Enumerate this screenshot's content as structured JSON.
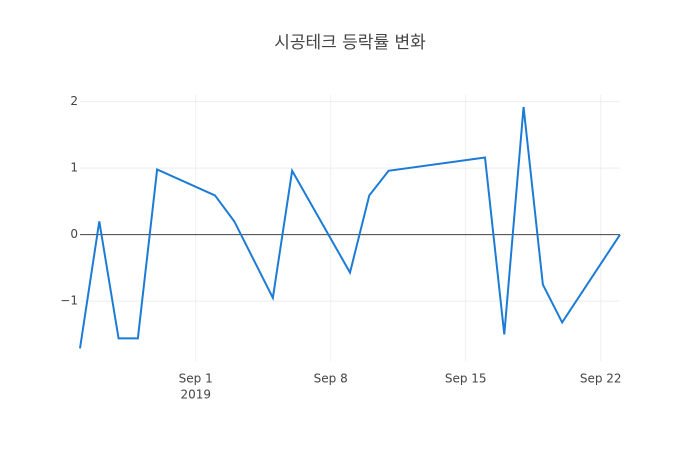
{
  "chart_data": {
    "type": "line",
    "title": "시공테크 등락률 변화",
    "x": [
      "2019-08-26",
      "2019-08-27",
      "2019-08-28",
      "2019-08-29",
      "2019-08-30",
      "2019-09-02",
      "2019-09-03",
      "2019-09-05",
      "2019-09-06",
      "2019-09-09",
      "2019-09-10",
      "2019-09-11",
      "2019-09-16",
      "2019-09-17",
      "2019-09-18",
      "2019-09-19",
      "2019-09-20",
      "2019-09-23"
    ],
    "series": [
      {
        "color": "#1c7cd5",
        "values": [
          -1.71,
          0.2,
          -1.56,
          -1.56,
          0.98,
          0.59,
          0.2,
          -0.95,
          0.96,
          -0.57,
          0.59,
          0.96,
          1.16,
          -1.5,
          1.92,
          -0.75,
          -1.32,
          0.0
        ]
      }
    ],
    "xlim": [
      "2019-08-26",
      "2019-09-23"
    ],
    "xticks": [
      {
        "value": "2019-09-01",
        "label": "Sep 1",
        "sublabel": "2019"
      },
      {
        "value": "2019-09-08",
        "label": "Sep 8"
      },
      {
        "value": "2019-09-15",
        "label": "Sep 15"
      },
      {
        "value": "2019-09-22",
        "label": "Sep 22"
      }
    ],
    "ylim": [
      -1.9,
      2.1
    ],
    "yticks": [
      {
        "value": -1,
        "label": "−1"
      },
      0,
      1,
      2
    ],
    "grid": true,
    "zeroline": true
  }
}
